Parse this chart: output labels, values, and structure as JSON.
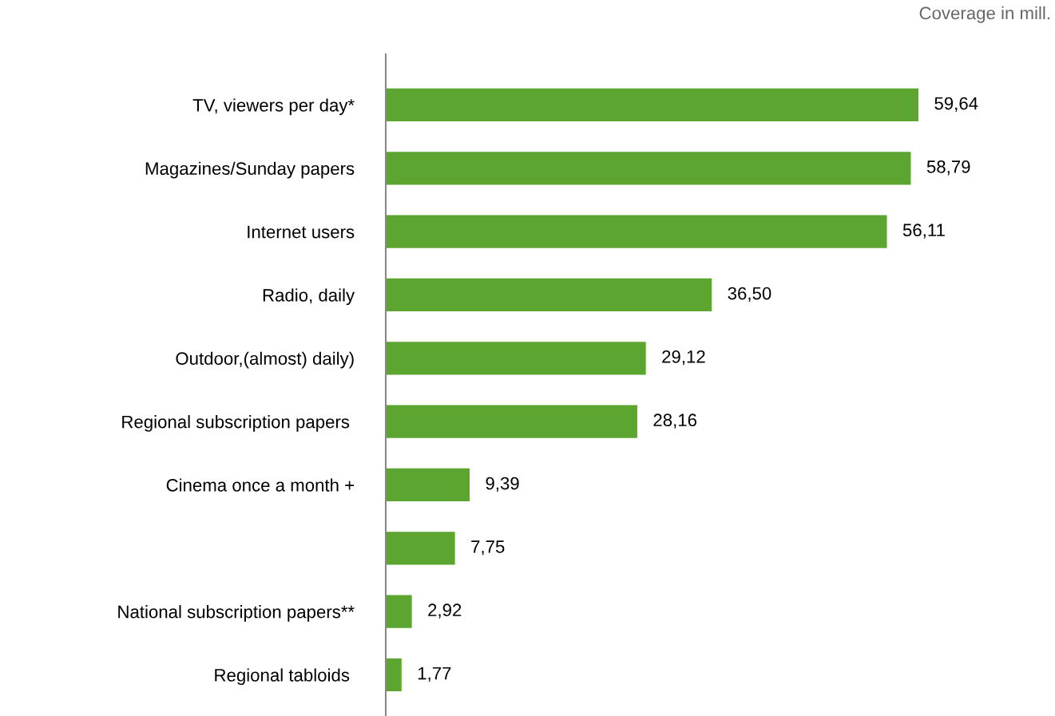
{
  "chart_data": {
    "type": "bar",
    "orientation": "horizontal",
    "categories": [
      "TV, viewers per day*",
      "Magazines/Sunday papers",
      "Internet users",
      "Radio, daily",
      "Outdoor,(almost) daily)",
      "Regional subscription papers ",
      "Cinema once a month +",
      null,
      "National subscription papers**",
      "Regional tabloids "
    ],
    "values": [
      59.64,
      58.79,
      56.11,
      36.5,
      29.12,
      28.16,
      9.39,
      7.75,
      2.92,
      1.77
    ],
    "value_labels": [
      "59,64",
      "58,79",
      "56,11",
      "36,50",
      "29,12",
      "28,16",
      "9,39",
      "7,75",
      "2,92",
      "1,77"
    ],
    "color": "#5ba530",
    "annotations": [
      "Coverage in mill."
    ],
    "grid": false,
    "legend": false
  }
}
